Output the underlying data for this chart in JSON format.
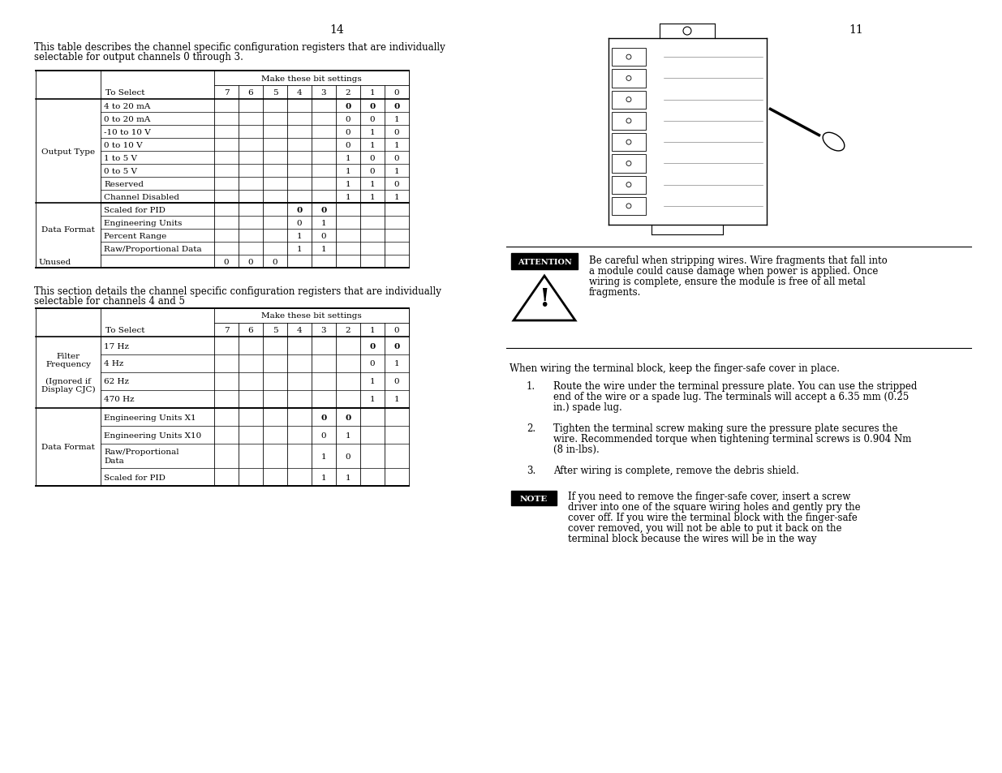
{
  "page_left": "14",
  "page_right": "11",
  "bg_color": "#ffffff",
  "left_intro1": "This table describes the channel specific configuration registers that are individually",
  "left_intro2": "selectable for output channels 0 through 3.",
  "left_intro3": "This section details the channel specific configuration registers that are individually",
  "left_intro4": "selectable for channels 4 and 5",
  "table1_header_span": "Make these bit settings",
  "table1_col_headers": [
    "7",
    "6",
    "5",
    "4",
    "3",
    "2",
    "1",
    "0"
  ],
  "table2_header_span": "Make these bit settings",
  "table2_col_headers": [
    "7",
    "6",
    "5",
    "4",
    "3",
    "2",
    "1",
    "0"
  ],
  "attention_text1": "Be careful when stripping wires. Wire fragments that fall into",
  "attention_text2": "a module could cause damage when power is applied. Once",
  "attention_text3": "wiring is complete, ensure the module is free of all metal",
  "attention_text4": "fragments.",
  "wiring_text": "When wiring the terminal block, keep the finger-safe cover in place.",
  "step1_num": "1.",
  "step1_text1": "Route the wire under the terminal pressure plate. You can use the stripped",
  "step1_text2": "end of the wire or a spade lug. The terminals will accept a 6.35 mm (0.25",
  "step1_text3": "in.) spade lug.",
  "step2_num": "2.",
  "step2_text1": "Tighten the terminal screw making sure the pressure plate secures the",
  "step2_text2": "wire. Recommended torque when tightening terminal screws is 0.904 Nm",
  "step2_text3": "(8 in-lbs).",
  "step3_num": "3.",
  "step3_text": "After wiring is complete, remove the debris shield.",
  "note_text1": "If you need to remove the finger-safe cover, insert a screw",
  "note_text2": "driver into one of the square wiring holes and gently pry the",
  "note_text3": "cover off. If you wire the terminal block with the finger-safe",
  "note_text4": "cover removed, you will not be able to put it back on the",
  "note_text5": "terminal block because the wires will be in the way",
  "font_size": 8.5,
  "small_font": 7.5
}
